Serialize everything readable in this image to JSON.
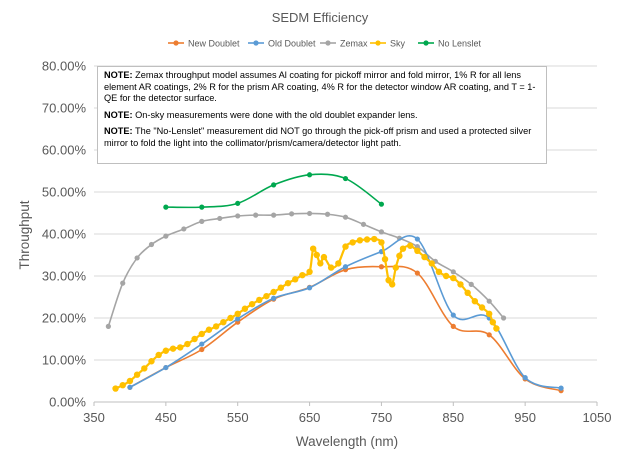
{
  "chart_data": {
    "type": "line",
    "title": "SEDM Efficiency",
    "xlabel": "Wavelength (nm)",
    "ylabel": "Throughput",
    "xlim": [
      350,
      1050
    ],
    "ylim": [
      0,
      0.8
    ],
    "x_ticks": [
      "350",
      "450",
      "550",
      "650",
      "750",
      "850",
      "950",
      "1050"
    ],
    "y_ticks": [
      "0.00%",
      "10.00%",
      "20.00%",
      "30.00%",
      "40.00%",
      "50.00%",
      "60.00%",
      "70.00%",
      "80.00%"
    ],
    "grid": "horizontal",
    "legend_position": "top",
    "series": [
      {
        "name": "New Doublet",
        "color": "#ED7D31",
        "marker": "circle",
        "x": [
          400,
          450,
          500,
          550,
          600,
          650,
          700,
          750,
          800,
          850,
          900,
          950,
          1000
        ],
        "y": [
          0.035,
          0.082,
          0.125,
          0.19,
          0.245,
          0.273,
          0.315,
          0.322,
          0.307,
          0.18,
          0.16,
          0.055,
          0.027
        ]
      },
      {
        "name": "Old Doublet",
        "color": "#5B9BD5",
        "marker": "circle",
        "x": [
          400,
          450,
          500,
          550,
          600,
          650,
          700,
          750,
          800,
          850,
          900,
          950,
          1000
        ],
        "y": [
          0.035,
          0.082,
          0.138,
          0.198,
          0.247,
          0.272,
          0.322,
          0.358,
          0.388,
          0.207,
          0.2,
          0.058,
          0.033
        ]
      },
      {
        "name": "Zemax",
        "color": "#A5A5A5",
        "marker": "circle",
        "x": [
          370,
          390,
          410,
          430,
          450,
          475,
          500,
          525,
          550,
          575,
          600,
          625,
          650,
          675,
          700,
          725,
          750,
          775,
          800,
          825,
          850,
          875,
          900,
          920
        ],
        "y": [
          0.18,
          0.283,
          0.343,
          0.375,
          0.395,
          0.412,
          0.43,
          0.437,
          0.443,
          0.445,
          0.445,
          0.448,
          0.449,
          0.447,
          0.44,
          0.423,
          0.405,
          0.39,
          0.37,
          0.335,
          0.31,
          0.28,
          0.24,
          0.2
        ]
      },
      {
        "name": "Sky",
        "color": "#FFC000",
        "marker": "circle",
        "x": [
          380,
          390,
          400,
          410,
          420,
          430,
          440,
          450,
          460,
          470,
          480,
          490,
          500,
          510,
          520,
          530,
          540,
          550,
          560,
          570,
          580,
          590,
          600,
          610,
          620,
          630,
          640,
          650,
          655,
          660,
          665,
          670,
          680,
          690,
          700,
          710,
          720,
          730,
          740,
          750,
          755,
          760,
          765,
          770,
          775,
          780,
          790,
          800,
          810,
          820,
          830,
          840,
          850,
          860,
          870,
          880,
          890,
          900,
          905,
          910
        ],
        "y": [
          0.032,
          0.04,
          0.05,
          0.065,
          0.08,
          0.097,
          0.112,
          0.122,
          0.127,
          0.13,
          0.138,
          0.15,
          0.162,
          0.172,
          0.18,
          0.19,
          0.2,
          0.21,
          0.222,
          0.233,
          0.243,
          0.252,
          0.262,
          0.272,
          0.283,
          0.292,
          0.302,
          0.31,
          0.365,
          0.35,
          0.33,
          0.345,
          0.32,
          0.33,
          0.37,
          0.38,
          0.385,
          0.387,
          0.388,
          0.38,
          0.34,
          0.29,
          0.28,
          0.32,
          0.348,
          0.365,
          0.372,
          0.36,
          0.345,
          0.33,
          0.31,
          0.3,
          0.295,
          0.28,
          0.26,
          0.24,
          0.225,
          0.21,
          0.19,
          0.175
        ]
      },
      {
        "name": "No Lenslet",
        "color": "#00A84F",
        "marker": "circle",
        "x": [
          450,
          500,
          550,
          600,
          650,
          700,
          750
        ],
        "y": [
          0.464,
          0.464,
          0.473,
          0.517,
          0.541,
          0.532,
          0.471
        ]
      }
    ]
  },
  "notes": {
    "n1_label": "NOTE:",
    "n1_text": " Zemax throughput model assumes Al coating for pickoff mirror and fold mirror, 1% R for all lens element AR coatings, 2% R for the prism AR coating, 4% R for the detector window AR coating, and T = 1-QE for the detector surface.",
    "n2_label": "NOTE:",
    "n2_text": " On-sky measurements were done with the old doublet expander lens.",
    "n3_label": "NOTE:",
    "n3_text": " The \"No-Lenslet\" measurement did NOT go through the pick-off prism and used a protected silver mirror to fold the light into the collimator/prism/camera/detector light path."
  }
}
